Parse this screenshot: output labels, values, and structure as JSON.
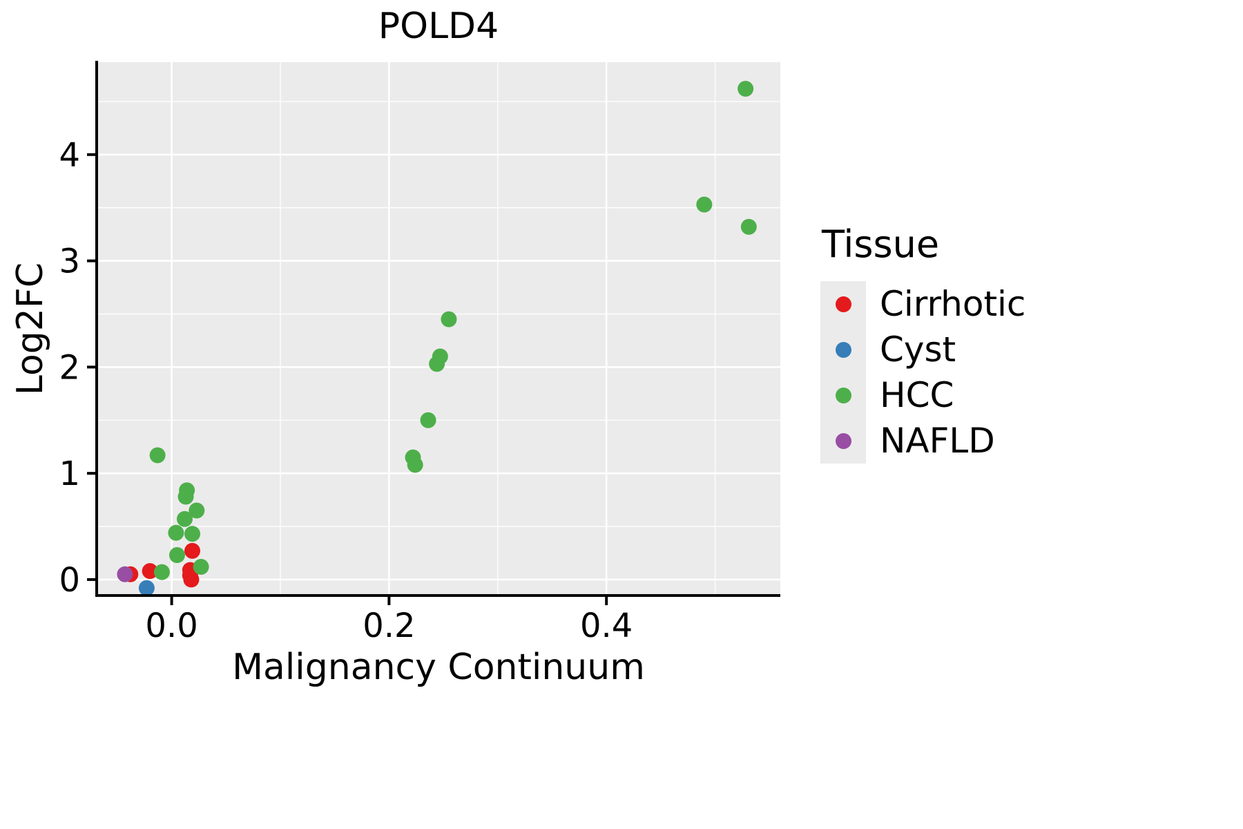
{
  "chart": {
    "title": "POLD4",
    "xlabel": "Malignancy Continuum",
    "ylabel": "Log2FC",
    "legend_title": "Tissue"
  },
  "chart_data": {
    "type": "scatter",
    "title": "POLD4",
    "xlabel": "Malignancy Continuum",
    "ylabel": "Log2FC",
    "legend_title": "Tissue",
    "legend_position": "right",
    "grid": true,
    "panel_color": "#EBEBEB",
    "grid_color": "#FFFFFF",
    "xlim": [
      -0.069,
      0.56
    ],
    "ylim": [
      -0.15,
      4.87
    ],
    "x_ticks": [
      0.0,
      0.2,
      0.4
    ],
    "x_tick_labels": [
      "0.0",
      "0.2",
      "0.4"
    ],
    "x_minor": [
      0.1,
      0.3,
      0.5
    ],
    "y_ticks": [
      0,
      1,
      2,
      3,
      4
    ],
    "y_tick_labels": [
      "0",
      "1",
      "2",
      "3",
      "4"
    ],
    "y_minor": [
      0.5,
      1.5,
      2.5,
      3.5,
      4.5
    ],
    "series": [
      {
        "name": "Cirrhotic",
        "color": "#E41A1C",
        "points": [
          [
            -0.038,
            0.05
          ],
          [
            -0.02,
            0.08
          ],
          [
            0.019,
            0.27
          ],
          [
            0.017,
            0.09
          ],
          [
            0.017,
            0.04
          ],
          [
            0.018,
            0.0
          ]
        ]
      },
      {
        "name": "Cyst",
        "color": "#377EB8",
        "points": [
          [
            -0.023,
            -0.08
          ]
        ]
      },
      {
        "name": "HCC",
        "color": "#4DAF4A",
        "points": [
          [
            -0.013,
            1.17
          ],
          [
            -0.009,
            0.07
          ],
          [
            0.004,
            0.44
          ],
          [
            0.005,
            0.23
          ],
          [
            0.012,
            0.57
          ],
          [
            0.013,
            0.78
          ],
          [
            0.014,
            0.84
          ],
          [
            0.019,
            0.43
          ],
          [
            0.023,
            0.65
          ],
          [
            0.027,
            0.12
          ],
          [
            0.222,
            1.15
          ],
          [
            0.224,
            1.08
          ],
          [
            0.236,
            1.5
          ],
          [
            0.244,
            2.03
          ],
          [
            0.247,
            2.1
          ],
          [
            0.255,
            2.45
          ],
          [
            0.49,
            3.53
          ],
          [
            0.528,
            4.62
          ],
          [
            0.531,
            3.32
          ]
        ]
      },
      {
        "name": "NAFLD",
        "color": "#984EA3",
        "points": [
          [
            -0.043,
            0.05
          ]
        ]
      }
    ]
  }
}
